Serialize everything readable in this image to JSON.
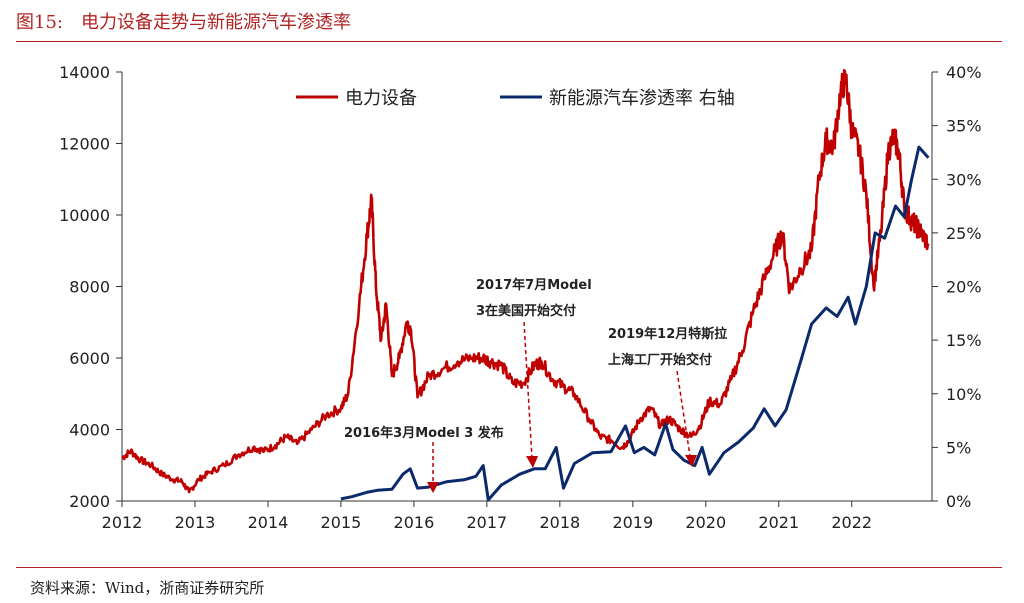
{
  "figure": {
    "title": "图15:　电力设备走势与新能源汽车渗透率",
    "source": "资料来源：Wind，浙商证券研究所"
  },
  "colors": {
    "primary": "#c00000",
    "secondary": "#0b2a6b",
    "accent": "#b22222"
  },
  "chart_data": {
    "type": "line",
    "x_ticks": [
      "2012",
      "2013",
      "2014",
      "2015",
      "2016",
      "2017",
      "2018",
      "2019",
      "2020",
      "2021",
      "2022"
    ],
    "x_range": [
      2012.0,
      2023.1
    ],
    "y_left": {
      "range": [
        2000,
        14000
      ],
      "ticks": [
        "2000",
        "4000",
        "6000",
        "8000",
        "10000",
        "12000",
        "14000"
      ]
    },
    "y_right": {
      "range": [
        0,
        40
      ],
      "ticks": [
        "0%",
        "5%",
        "10%",
        "15%",
        "20%",
        "25%",
        "30%",
        "35%",
        "40%"
      ]
    },
    "grid": false,
    "legend_position": "top",
    "series": [
      {
        "name": "电力设备",
        "axis": "left",
        "points": [
          [
            2012.0,
            3200
          ],
          [
            2012.12,
            3400
          ],
          [
            2012.25,
            3150
          ],
          [
            2012.4,
            3000
          ],
          [
            2012.55,
            2750
          ],
          [
            2012.7,
            2600
          ],
          [
            2012.82,
            2550
          ],
          [
            2012.92,
            2250
          ],
          [
            2013.05,
            2600
          ],
          [
            2013.2,
            2800
          ],
          [
            2013.4,
            3000
          ],
          [
            2013.6,
            3300
          ],
          [
            2013.8,
            3500
          ],
          [
            2013.95,
            3400
          ],
          [
            2014.1,
            3550
          ],
          [
            2014.25,
            3800
          ],
          [
            2014.4,
            3600
          ],
          [
            2014.6,
            4000
          ],
          [
            2014.8,
            4400
          ],
          [
            2015.0,
            4600
          ],
          [
            2015.1,
            5000
          ],
          [
            2015.25,
            7500
          ],
          [
            2015.36,
            9500
          ],
          [
            2015.42,
            10400
          ],
          [
            2015.48,
            8000
          ],
          [
            2015.55,
            6500
          ],
          [
            2015.62,
            7500
          ],
          [
            2015.7,
            5500
          ],
          [
            2015.8,
            6000
          ],
          [
            2015.9,
            7000
          ],
          [
            2015.96,
            6800
          ],
          [
            2016.05,
            4900
          ],
          [
            2016.2,
            5500
          ],
          [
            2016.4,
            5700
          ],
          [
            2016.6,
            5900
          ],
          [
            2016.8,
            6000
          ],
          [
            2016.95,
            6000
          ],
          [
            2017.05,
            5900
          ],
          [
            2017.2,
            5800
          ],
          [
            2017.35,
            5300
          ],
          [
            2017.5,
            5300
          ],
          [
            2017.65,
            5800
          ],
          [
            2017.75,
            5900
          ],
          [
            2017.9,
            5400
          ],
          [
            2018.05,
            5200
          ],
          [
            2018.2,
            5000
          ],
          [
            2018.4,
            4300
          ],
          [
            2018.55,
            3800
          ],
          [
            2018.7,
            3700
          ],
          [
            2018.85,
            3500
          ],
          [
            2018.95,
            3700
          ],
          [
            2019.1,
            4300
          ],
          [
            2019.25,
            4600
          ],
          [
            2019.38,
            4100
          ],
          [
            2019.5,
            4300
          ],
          [
            2019.65,
            4000
          ],
          [
            2019.8,
            3800
          ],
          [
            2019.92,
            4100
          ],
          [
            2020.05,
            4800
          ],
          [
            2020.2,
            4700
          ],
          [
            2020.35,
            5400
          ],
          [
            2020.5,
            6200
          ],
          [
            2020.65,
            7300
          ],
          [
            2020.8,
            8200
          ],
          [
            2020.95,
            9000
          ],
          [
            2021.05,
            9500
          ],
          [
            2021.15,
            7900
          ],
          [
            2021.3,
            8500
          ],
          [
            2021.45,
            9000
          ],
          [
            2021.55,
            11000
          ],
          [
            2021.65,
            12100
          ],
          [
            2021.75,
            11900
          ],
          [
            2021.85,
            13500
          ],
          [
            2021.92,
            13800
          ],
          [
            2022.0,
            12400
          ],
          [
            2022.1,
            11800
          ],
          [
            2022.2,
            10600
          ],
          [
            2022.3,
            8000
          ],
          [
            2022.4,
            9500
          ],
          [
            2022.5,
            11800
          ],
          [
            2022.58,
            12200
          ],
          [
            2022.65,
            11700
          ],
          [
            2022.72,
            10200
          ],
          [
            2022.8,
            9900
          ],
          [
            2022.88,
            9700
          ],
          [
            2022.95,
            9500
          ],
          [
            2023.05,
            9200
          ]
        ]
      },
      {
        "name": "新能源汽车渗透率 右轴",
        "axis": "right",
        "points": [
          [
            2015.0,
            0.2
          ],
          [
            2015.15,
            0.4
          ],
          [
            2015.35,
            0.8
          ],
          [
            2015.5,
            1.0
          ],
          [
            2015.7,
            1.1
          ],
          [
            2015.85,
            2.5
          ],
          [
            2015.95,
            3.0
          ],
          [
            2016.05,
            1.2
          ],
          [
            2016.2,
            1.3
          ],
          [
            2016.45,
            1.8
          ],
          [
            2016.7,
            2.0
          ],
          [
            2016.85,
            2.3
          ],
          [
            2016.95,
            3.3
          ],
          [
            2017.02,
            0.1
          ],
          [
            2017.2,
            1.5
          ],
          [
            2017.45,
            2.5
          ],
          [
            2017.65,
            3.0
          ],
          [
            2017.8,
            3.0
          ],
          [
            2017.95,
            5.0
          ],
          [
            2018.05,
            1.2
          ],
          [
            2018.2,
            3.5
          ],
          [
            2018.45,
            4.5
          ],
          [
            2018.7,
            4.6
          ],
          [
            2018.9,
            7.0
          ],
          [
            2019.02,
            4.5
          ],
          [
            2019.15,
            5.0
          ],
          [
            2019.3,
            4.3
          ],
          [
            2019.45,
            7.2
          ],
          [
            2019.55,
            4.8
          ],
          [
            2019.7,
            3.8
          ],
          [
            2019.85,
            3.3
          ],
          [
            2019.95,
            5.0
          ],
          [
            2020.05,
            2.5
          ],
          [
            2020.25,
            4.5
          ],
          [
            2020.45,
            5.5
          ],
          [
            2020.65,
            6.8
          ],
          [
            2020.8,
            8.6
          ],
          [
            2020.95,
            7.0
          ],
          [
            2021.1,
            8.5
          ],
          [
            2021.3,
            13.0
          ],
          [
            2021.45,
            16.5
          ],
          [
            2021.65,
            18.0
          ],
          [
            2021.8,
            17.2
          ],
          [
            2021.95,
            19.0
          ],
          [
            2022.05,
            16.5
          ],
          [
            2022.2,
            20.0
          ],
          [
            2022.32,
            25.0
          ],
          [
            2022.45,
            24.5
          ],
          [
            2022.6,
            27.5
          ],
          [
            2022.72,
            26.5
          ],
          [
            2022.82,
            30.0
          ],
          [
            2022.92,
            33.0
          ],
          [
            2023.05,
            32.0
          ]
        ]
      }
    ],
    "annotations": [
      {
        "text": "2016年3月Model 3 发布",
        "x": 2016.25,
        "y": 3.0,
        "axis": "right"
      },
      {
        "text": "2017年7月Model",
        "x": 2017.6,
        "y": 3.0,
        "axis": "right",
        "line2": "3在美国开始交付"
      },
      {
        "text": "2019年12月特斯拉",
        "x": 2019.8,
        "y": 3.5,
        "axis": "right",
        "line2": "上海工厂开始交付"
      }
    ]
  }
}
